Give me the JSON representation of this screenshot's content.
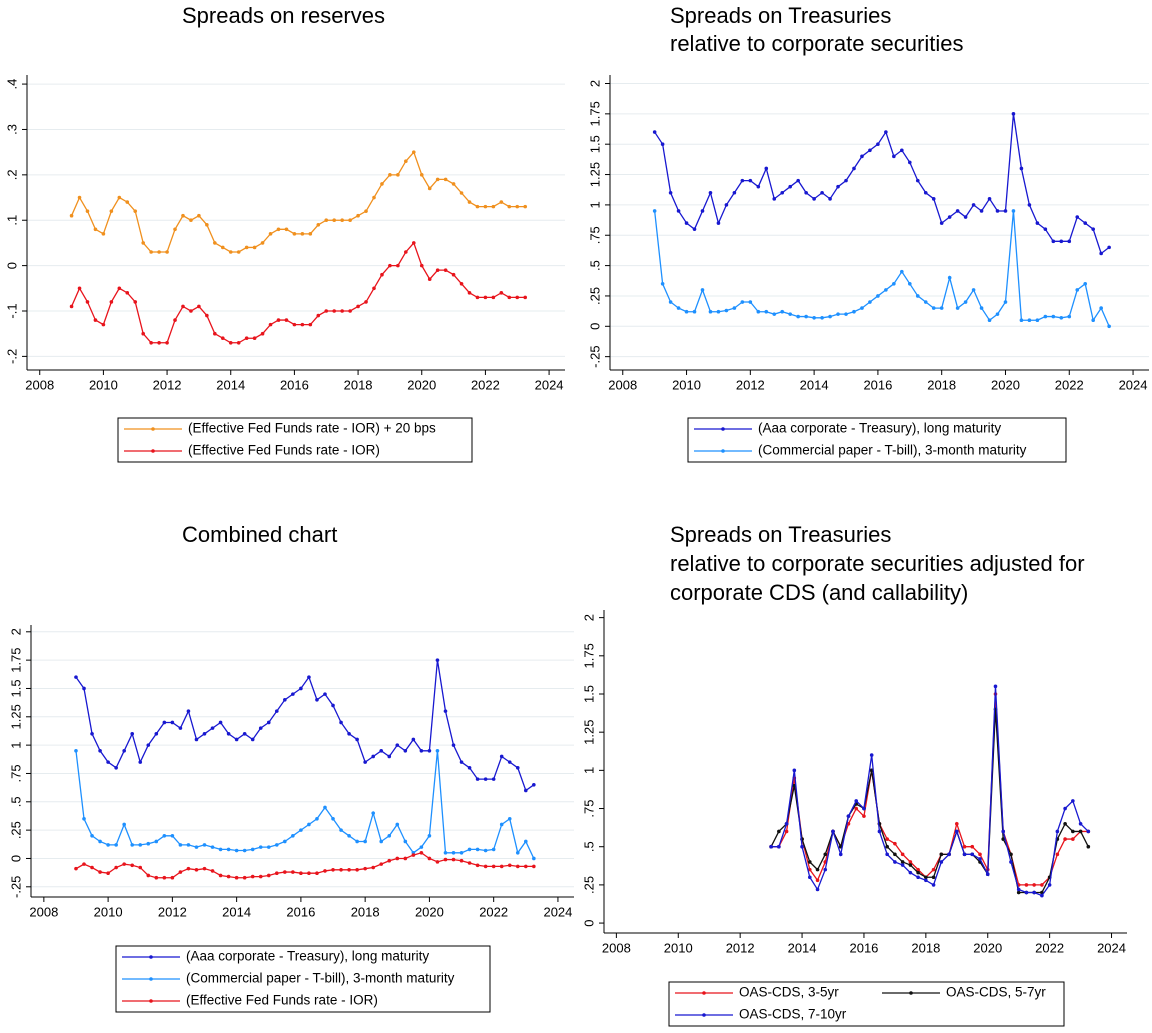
{
  "chart_data": [
    {
      "type": "line",
      "title": [
        "Spreads on reserves"
      ],
      "x": [
        2009.0,
        2009.25,
        2009.5,
        2009.75,
        2010.0,
        2010.25,
        2010.5,
        2010.75,
        2011.0,
        2011.25,
        2011.5,
        2011.75,
        2012.0,
        2012.25,
        2012.5,
        2012.75,
        2013.0,
        2013.25,
        2013.5,
        2013.75,
        2014.0,
        2014.25,
        2014.5,
        2014.75,
        2015.0,
        2015.25,
        2015.5,
        2015.75,
        2016.0,
        2016.25,
        2016.5,
        2016.75,
        2017.0,
        2017.25,
        2017.5,
        2017.75,
        2018.0,
        2018.25,
        2018.5,
        2018.75,
        2019.0,
        2019.25,
        2019.5,
        2019.75,
        2020.0,
        2020.25,
        2020.5,
        2020.75,
        2021.0,
        2021.25,
        2021.5,
        2021.75,
        2022.0,
        2022.25,
        2022.5,
        2022.75,
        2023.0,
        2023.25
      ],
      "series": [
        {
          "name": "(Effective Fed Funds rate - IOR) + 20 bps",
          "color": "#f0901e",
          "values": [
            0.11,
            0.15,
            0.12,
            0.08,
            0.07,
            0.12,
            0.15,
            0.14,
            0.12,
            0.05,
            0.03,
            0.03,
            0.03,
            0.08,
            0.11,
            0.1,
            0.11,
            0.09,
            0.05,
            0.04,
            0.03,
            0.03,
            0.04,
            0.04,
            0.05,
            0.07,
            0.08,
            0.08,
            0.07,
            0.07,
            0.07,
            0.09,
            0.1,
            0.1,
            0.1,
            0.1,
            0.11,
            0.12,
            0.15,
            0.18,
            0.2,
            0.2,
            0.23,
            0.25,
            0.2,
            0.17,
            0.19,
            0.19,
            0.18,
            0.16,
            0.14,
            0.13,
            0.13,
            0.13,
            0.14,
            0.13,
            0.13,
            0.13
          ]
        },
        {
          "name": "(Effective Fed Funds rate - IOR)",
          "color": "#e8141c",
          "values": [
            -0.09,
            -0.05,
            -0.08,
            -0.12,
            -0.13,
            -0.08,
            -0.05,
            -0.06,
            -0.08,
            -0.15,
            -0.17,
            -0.17,
            -0.17,
            -0.12,
            -0.09,
            -0.1,
            -0.09,
            -0.11,
            -0.15,
            -0.16,
            -0.17,
            -0.17,
            -0.16,
            -0.16,
            -0.15,
            -0.13,
            -0.12,
            -0.12,
            -0.13,
            -0.13,
            -0.13,
            -0.11,
            -0.1,
            -0.1,
            -0.1,
            -0.1,
            -0.09,
            -0.08,
            -0.05,
            -0.02,
            0.0,
            0.0,
            0.03,
            0.05,
            0.0,
            -0.03,
            -0.01,
            -0.01,
            -0.02,
            -0.04,
            -0.06,
            -0.07,
            -0.07,
            -0.07,
            -0.06,
            -0.07,
            -0.07,
            -0.07
          ]
        }
      ],
      "xlim": [
        2007.6,
        2024.5
      ],
      "xticks": [
        2008,
        2010,
        2012,
        2014,
        2016,
        2018,
        2020,
        2022,
        2024
      ],
      "ylim": [
        -0.23,
        0.42
      ],
      "yticks": [
        {
          "value": -0.2,
          "label": "-.2"
        },
        {
          "value": -0.1,
          "label": "-.1"
        },
        0,
        {
          "value": 0.1,
          "label": ".1"
        },
        {
          "value": 0.2,
          "label": ".2"
        },
        {
          "value": 0.3,
          "label": ".3"
        },
        {
          "value": 0.4,
          "label": ".4"
        }
      ],
      "grid": true,
      "legend_columns": 1
    },
    {
      "type": "line",
      "title": [
        "Spreads on Treasuries",
        "relative to corporate securities"
      ],
      "x": [
        2009.0,
        2009.25,
        2009.5,
        2009.75,
        2010.0,
        2010.25,
        2010.5,
        2010.75,
        2011.0,
        2011.25,
        2011.5,
        2011.75,
        2012.0,
        2012.25,
        2012.5,
        2012.75,
        2013.0,
        2013.25,
        2013.5,
        2013.75,
        2014.0,
        2014.25,
        2014.5,
        2014.75,
        2015.0,
        2015.25,
        2015.5,
        2015.75,
        2016.0,
        2016.25,
        2016.5,
        2016.75,
        2017.0,
        2017.25,
        2017.5,
        2017.75,
        2018.0,
        2018.25,
        2018.5,
        2018.75,
        2019.0,
        2019.25,
        2019.5,
        2019.75,
        2020.0,
        2020.25,
        2020.5,
        2020.75,
        2021.0,
        2021.25,
        2021.5,
        2021.75,
        2022.0,
        2022.25,
        2022.5,
        2022.75,
        2023.0,
        2023.25
      ],
      "series": [
        {
          "name": "(Aaa corporate - Treasury), long maturity",
          "color": "#1818d0",
          "values": [
            1.6,
            1.5,
            1.1,
            0.95,
            0.85,
            0.8,
            0.95,
            1.1,
            0.85,
            1.0,
            1.1,
            1.2,
            1.2,
            1.15,
            1.3,
            1.05,
            1.1,
            1.15,
            1.2,
            1.1,
            1.05,
            1.1,
            1.05,
            1.15,
            1.2,
            1.3,
            1.4,
            1.45,
            1.5,
            1.6,
            1.4,
            1.45,
            1.35,
            1.2,
            1.1,
            1.05,
            0.85,
            0.9,
            0.95,
            0.9,
            1.0,
            0.95,
            1.05,
            0.95,
            0.95,
            1.75,
            1.3,
            1.0,
            0.85,
            0.8,
            0.7,
            0.7,
            0.7,
            0.9,
            0.85,
            0.8,
            0.6,
            0.65
          ]
        },
        {
          "name": "(Commercial paper - T-bill), 3-month maturity",
          "color": "#1e90ff",
          "values": [
            0.95,
            0.35,
            0.2,
            0.15,
            0.12,
            0.12,
            0.3,
            0.12,
            0.12,
            0.13,
            0.15,
            0.2,
            0.2,
            0.12,
            0.12,
            0.1,
            0.12,
            0.1,
            0.08,
            0.08,
            0.07,
            0.07,
            0.08,
            0.1,
            0.1,
            0.12,
            0.15,
            0.2,
            0.25,
            0.3,
            0.35,
            0.45,
            0.35,
            0.25,
            0.2,
            0.15,
            0.15,
            0.4,
            0.15,
            0.2,
            0.3,
            0.15,
            0.05,
            0.1,
            0.2,
            0.95,
            0.05,
            0.05,
            0.05,
            0.08,
            0.08,
            0.07,
            0.08,
            0.3,
            0.35,
            0.05,
            0.15,
            0.0
          ]
        }
      ],
      "xlim": [
        2007.6,
        2024.5
      ],
      "xticks": [
        2008,
        2010,
        2012,
        2014,
        2016,
        2018,
        2020,
        2022,
        2024
      ],
      "ylim": [
        -0.36,
        2.07
      ],
      "yticks": [
        {
          "value": -0.25,
          "label": "-.25"
        },
        0,
        {
          "value": 0.25,
          "label": ".25"
        },
        {
          "value": 0.5,
          "label": ".5"
        },
        {
          "value": 0.75,
          "label": ".75"
        },
        1,
        1.25,
        1.5,
        1.75,
        2
      ],
      "grid": true,
      "legend_columns": 1
    },
    {
      "type": "line",
      "title": [
        "Combined chart"
      ],
      "x": [
        2009.0,
        2009.25,
        2009.5,
        2009.75,
        2010.0,
        2010.25,
        2010.5,
        2010.75,
        2011.0,
        2011.25,
        2011.5,
        2011.75,
        2012.0,
        2012.25,
        2012.5,
        2012.75,
        2013.0,
        2013.25,
        2013.5,
        2013.75,
        2014.0,
        2014.25,
        2014.5,
        2014.75,
        2015.0,
        2015.25,
        2015.5,
        2015.75,
        2016.0,
        2016.25,
        2016.5,
        2016.75,
        2017.0,
        2017.25,
        2017.5,
        2017.75,
        2018.0,
        2018.25,
        2018.5,
        2018.75,
        2019.0,
        2019.25,
        2019.5,
        2019.75,
        2020.0,
        2020.25,
        2020.5,
        2020.75,
        2021.0,
        2021.25,
        2021.5,
        2021.75,
        2022.0,
        2022.25,
        2022.5,
        2022.75,
        2023.0,
        2023.25
      ],
      "series": [
        {
          "name": "(Aaa corporate - Treasury), long maturity",
          "color": "#1818d0",
          "values": [
            1.6,
            1.5,
            1.1,
            0.95,
            0.85,
            0.8,
            0.95,
            1.1,
            0.85,
            1.0,
            1.1,
            1.2,
            1.2,
            1.15,
            1.3,
            1.05,
            1.1,
            1.15,
            1.2,
            1.1,
            1.05,
            1.1,
            1.05,
            1.15,
            1.2,
            1.3,
            1.4,
            1.45,
            1.5,
            1.6,
            1.4,
            1.45,
            1.35,
            1.2,
            1.1,
            1.05,
            0.85,
            0.9,
            0.95,
            0.9,
            1.0,
            0.95,
            1.05,
            0.95,
            0.95,
            1.75,
            1.3,
            1.0,
            0.85,
            0.8,
            0.7,
            0.7,
            0.7,
            0.9,
            0.85,
            0.8,
            0.6,
            0.65
          ]
        },
        {
          "name": "(Commercial paper - T-bill), 3-month maturity",
          "color": "#1e90ff",
          "values": [
            0.95,
            0.35,
            0.2,
            0.15,
            0.12,
            0.12,
            0.3,
            0.12,
            0.12,
            0.13,
            0.15,
            0.2,
            0.2,
            0.12,
            0.12,
            0.1,
            0.12,
            0.1,
            0.08,
            0.08,
            0.07,
            0.07,
            0.08,
            0.1,
            0.1,
            0.12,
            0.15,
            0.2,
            0.25,
            0.3,
            0.35,
            0.45,
            0.35,
            0.25,
            0.2,
            0.15,
            0.15,
            0.4,
            0.15,
            0.2,
            0.3,
            0.15,
            0.05,
            0.1,
            0.2,
            0.95,
            0.05,
            0.05,
            0.05,
            0.08,
            0.08,
            0.07,
            0.08,
            0.3,
            0.35,
            0.05,
            0.15,
            0.0
          ]
        },
        {
          "name": "(Effective Fed Funds rate - IOR)",
          "color": "#e8141c",
          "values": [
            -0.09,
            -0.05,
            -0.08,
            -0.12,
            -0.13,
            -0.08,
            -0.05,
            -0.06,
            -0.08,
            -0.15,
            -0.17,
            -0.17,
            -0.17,
            -0.12,
            -0.09,
            -0.1,
            -0.09,
            -0.11,
            -0.15,
            -0.16,
            -0.17,
            -0.17,
            -0.16,
            -0.16,
            -0.15,
            -0.13,
            -0.12,
            -0.12,
            -0.13,
            -0.13,
            -0.13,
            -0.11,
            -0.1,
            -0.1,
            -0.1,
            -0.1,
            -0.09,
            -0.08,
            -0.05,
            -0.02,
            0.0,
            0.0,
            0.03,
            0.05,
            0.0,
            -0.03,
            -0.01,
            -0.01,
            -0.02,
            -0.04,
            -0.06,
            -0.07,
            -0.07,
            -0.07,
            -0.06,
            -0.07,
            -0.07,
            -0.07
          ]
        }
      ],
      "xlim": [
        2007.6,
        2024.5
      ],
      "xticks": [
        2008,
        2010,
        2012,
        2014,
        2016,
        2018,
        2020,
        2022,
        2024
      ],
      "ylim": [
        -0.34,
        2.06
      ],
      "yticks": [
        {
          "value": -0.25,
          "label": "-.25"
        },
        0,
        {
          "value": 0.25,
          "label": ".25"
        },
        {
          "value": 0.5,
          "label": ".5"
        },
        {
          "value": 0.75,
          "label": ".75"
        },
        1,
        1.25,
        1.5,
        1.75,
        2
      ],
      "grid": true,
      "legend_columns": 1
    },
    {
      "type": "line",
      "title": [
        "Spreads on Treasuries",
        "relative to corporate securities adjusted for",
        "corporate CDS (and callability)"
      ],
      "x": [
        2013.0,
        2013.25,
        2013.5,
        2013.75,
        2014.0,
        2014.25,
        2014.5,
        2014.75,
        2015.0,
        2015.25,
        2015.5,
        2015.75,
        2016.0,
        2016.25,
        2016.5,
        2016.75,
        2017.0,
        2017.25,
        2017.5,
        2017.75,
        2018.0,
        2018.25,
        2018.5,
        2018.75,
        2019.0,
        2019.25,
        2019.5,
        2019.75,
        2020.0,
        2020.25,
        2020.5,
        2020.75,
        2021.0,
        2021.25,
        2021.5,
        2021.75,
        2022.0,
        2022.25,
        2022.5,
        2022.75,
        2023.0,
        2023.25
      ],
      "series": [
        {
          "name": "OAS-CDS, 3-5yr",
          "color": "#e8141c",
          "values": [
            0.5,
            0.5,
            0.6,
            0.95,
            0.55,
            0.35,
            0.28,
            0.4,
            0.6,
            0.5,
            0.65,
            0.75,
            0.7,
            1.0,
            0.65,
            0.55,
            0.52,
            0.45,
            0.4,
            0.35,
            0.3,
            0.35,
            0.45,
            0.45,
            0.65,
            0.5,
            0.5,
            0.45,
            0.35,
            1.5,
            0.6,
            0.45,
            0.25,
            0.25,
            0.25,
            0.25,
            0.3,
            0.45,
            0.55,
            0.55,
            0.6,
            0.6
          ]
        },
        {
          "name": "OAS-CDS, 5-7yr",
          "color": "#111111",
          "values": [
            0.5,
            0.6,
            0.65,
            0.9,
            0.55,
            0.4,
            0.35,
            0.45,
            0.6,
            0.5,
            0.7,
            0.78,
            0.75,
            1.0,
            0.65,
            0.5,
            0.45,
            0.4,
            0.38,
            0.33,
            0.3,
            0.3,
            0.45,
            0.45,
            0.6,
            0.45,
            0.45,
            0.4,
            0.32,
            1.4,
            0.55,
            0.45,
            0.2,
            0.2,
            0.2,
            0.2,
            0.3,
            0.55,
            0.65,
            0.6,
            0.6,
            0.5
          ]
        },
        {
          "name": "OAS-CDS, 7-10yr",
          "color": "#1818d0",
          "values": [
            0.5,
            0.5,
            0.65,
            1.0,
            0.5,
            0.3,
            0.22,
            0.35,
            0.6,
            0.45,
            0.7,
            0.8,
            0.75,
            1.1,
            0.6,
            0.45,
            0.4,
            0.38,
            0.33,
            0.3,
            0.28,
            0.25,
            0.4,
            0.45,
            0.6,
            0.45,
            0.45,
            0.42,
            0.32,
            1.55,
            0.6,
            0.4,
            0.22,
            0.2,
            0.2,
            0.18,
            0.25,
            0.6,
            0.75,
            0.8,
            0.65,
            0.6
          ]
        }
      ],
      "xlim": [
        2007.6,
        2024.5
      ],
      "xticks": [
        2008,
        2010,
        2012,
        2014,
        2016,
        2018,
        2020,
        2022,
        2024
      ],
      "ylim": [
        -0.065,
        2.05
      ],
      "yticks": [
        0,
        {
          "value": 0.25,
          "label": ".25"
        },
        {
          "value": 0.5,
          "label": ".5"
        },
        {
          "value": 0.75,
          "label": ".75"
        },
        1,
        1.25,
        1.5,
        1.75,
        2
      ],
      "grid": false,
      "legend_columns": 2
    }
  ]
}
